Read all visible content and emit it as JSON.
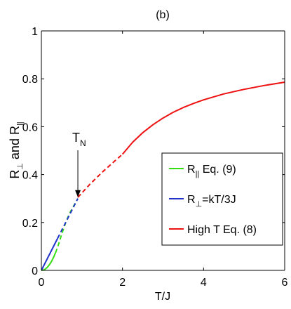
{
  "chart_data": {
    "type": "line",
    "title": "(b)",
    "xlabel": "T/J",
    "ylabel": {
      "base1": "R",
      "sub1": "⊥",
      "mid": " and ",
      "base2": "R",
      "sub2": "||"
    },
    "xlim": [
      0,
      6
    ],
    "ylim": [
      0,
      1
    ],
    "xticks": [
      0,
      2,
      4,
      6
    ],
    "yticks": [
      0,
      0.2,
      0.4,
      0.6,
      0.8,
      1
    ],
    "ytick_labels": [
      "0",
      "0.2",
      "0.4",
      "0.6",
      "0.8",
      "1"
    ],
    "grid": false,
    "legend_position": "center-right",
    "annotation": {
      "base": "T",
      "sub": "N",
      "x": 0.9,
      "y": 0.3
    },
    "series": [
      {
        "legend": {
          "base": "R",
          "sub": "||",
          "rest": " Eq. (9)"
        },
        "color": "#33dd11",
        "style": "solid",
        "x": [
          0,
          0.05,
          0.1,
          0.15,
          0.2,
          0.25,
          0.3,
          0.35
        ],
        "y": [
          0,
          0.0015,
          0.006,
          0.0135,
          0.024,
          0.0375,
          0.054,
          0.0735
        ]
      },
      {
        "legend": null,
        "color": "#33dd11",
        "style": "dashed",
        "x": [
          0.35,
          0.4,
          0.5,
          0.6,
          0.7,
          0.8,
          0.9
        ],
        "y": [
          0.0735,
          0.096,
          0.15,
          0.2,
          0.24,
          0.27,
          0.3
        ]
      },
      {
        "legend": {
          "base": "R",
          "sub": "⊥",
          "rest": "=kT/3J"
        },
        "color": "#2233cc",
        "style": "solid",
        "x": [
          0,
          0.4
        ],
        "y": [
          0,
          0.1333
        ]
      },
      {
        "legend": null,
        "color": "#2233cc",
        "style": "dashed",
        "x": [
          0.4,
          0.9
        ],
        "y": [
          0.1333,
          0.3
        ]
      },
      {
        "legend": null,
        "color": "#ee1111",
        "style": "dashed",
        "x": [
          0.9,
          1.2,
          1.5,
          1.8,
          2.0
        ],
        "y": [
          0.305,
          0.36,
          0.41,
          0.455,
          0.485
        ]
      },
      {
        "legend": {
          "base": "High T Eq. (8)",
          "sub": "",
          "rest": ""
        },
        "color": "#ee1111",
        "style": "solid",
        "x": [
          2.0,
          2.25,
          2.5,
          2.75,
          3.0,
          3.25,
          3.5,
          3.75,
          4.0,
          4.5,
          5.0,
          5.5,
          6.0
        ],
        "y": [
          0.485,
          0.535,
          0.575,
          0.608,
          0.636,
          0.66,
          0.68,
          0.697,
          0.712,
          0.737,
          0.756,
          0.772,
          0.786
        ]
      }
    ]
  }
}
